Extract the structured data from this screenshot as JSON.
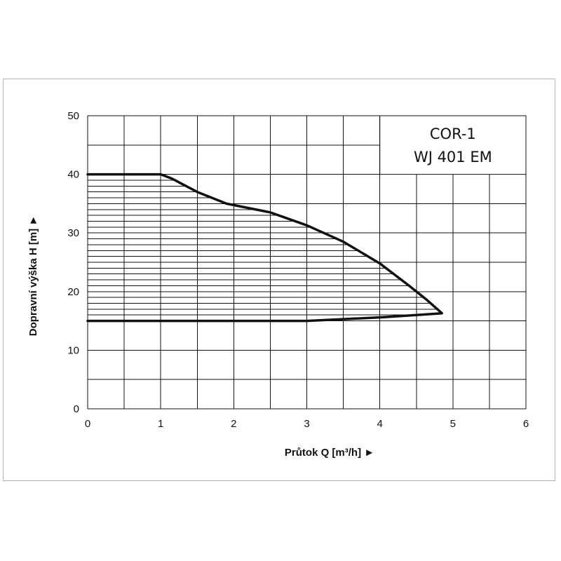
{
  "chart_data": {
    "type": "line",
    "title_lines": [
      "COR-1",
      "WJ 401 EM"
    ],
    "xlabel": "Průtok Q [m³/h] ►",
    "ylabel": "Dopravní výška H [m] ►",
    "xlim": [
      0,
      6
    ],
    "ylim": [
      0,
      50
    ],
    "x_ticks": [
      0,
      1,
      2,
      3,
      4,
      5,
      6
    ],
    "y_ticks": [
      0,
      10,
      20,
      30,
      40,
      50
    ],
    "grid": true,
    "legend": "none",
    "series": [
      {
        "x": [
          0,
          1.0,
          1.15,
          1.5,
          1.9,
          2.5,
          3.0,
          3.5,
          4.0,
          4.4,
          4.65,
          4.85,
          4.5,
          4.0,
          3.5,
          3.0,
          2.0,
          1.0,
          0
        ],
        "y": [
          40,
          40,
          39.3,
          37.0,
          35.0,
          33.5,
          31.3,
          28.5,
          24.8,
          21.0,
          18.5,
          16.3,
          16.0,
          15.6,
          15.3,
          15.0,
          15.0,
          15.0,
          15.0
        ]
      }
    ]
  }
}
